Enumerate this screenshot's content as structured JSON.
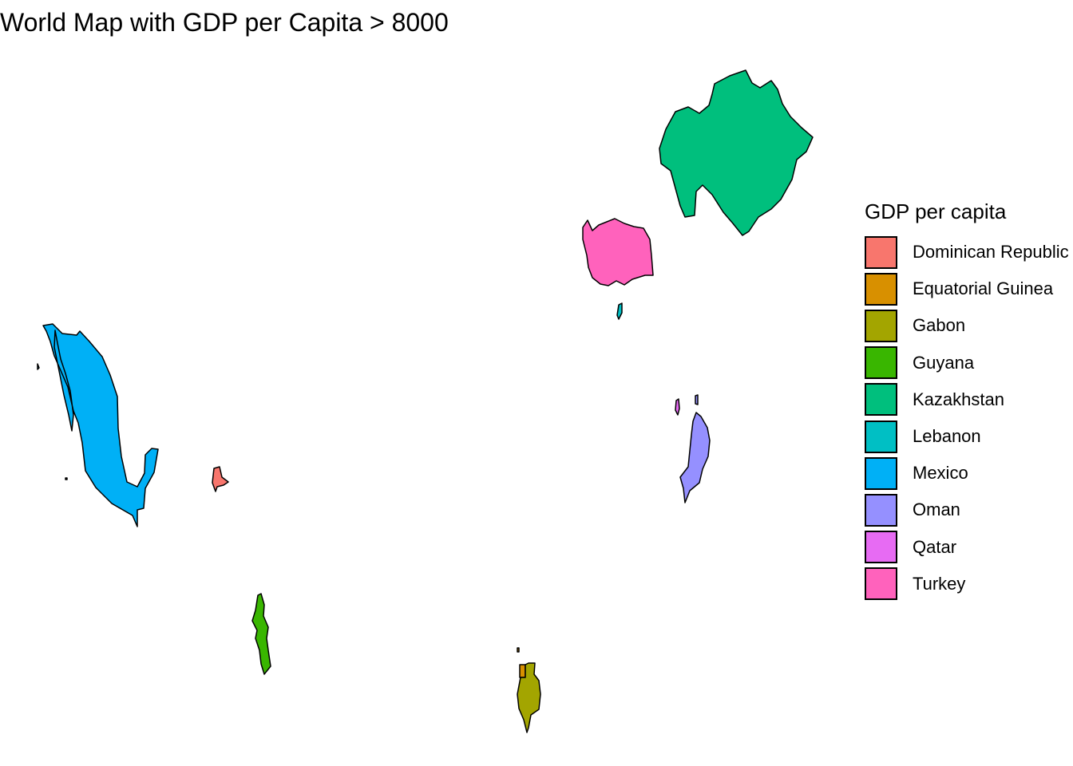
{
  "title": "World Map with GDP per Capita > 8000",
  "legend": {
    "title": "GDP per capita",
    "items": [
      {
        "label": "Dominican Republic",
        "color": "#F8766D"
      },
      {
        "label": "Equatorial Guinea",
        "color": "#D89000"
      },
      {
        "label": "Gabon",
        "color": "#A3A500"
      },
      {
        "label": "Guyana",
        "color": "#39B600"
      },
      {
        "label": "Kazakhstan",
        "color": "#00BF7D"
      },
      {
        "label": "Lebanon",
        "color": "#00BFC4"
      },
      {
        "label": "Mexico",
        "color": "#00B0F6"
      },
      {
        "label": "Oman",
        "color": "#9590FF"
      },
      {
        "label": "Qatar",
        "color": "#E76BF3"
      },
      {
        "label": "Turkey",
        "color": "#FF62BC"
      }
    ]
  }
}
